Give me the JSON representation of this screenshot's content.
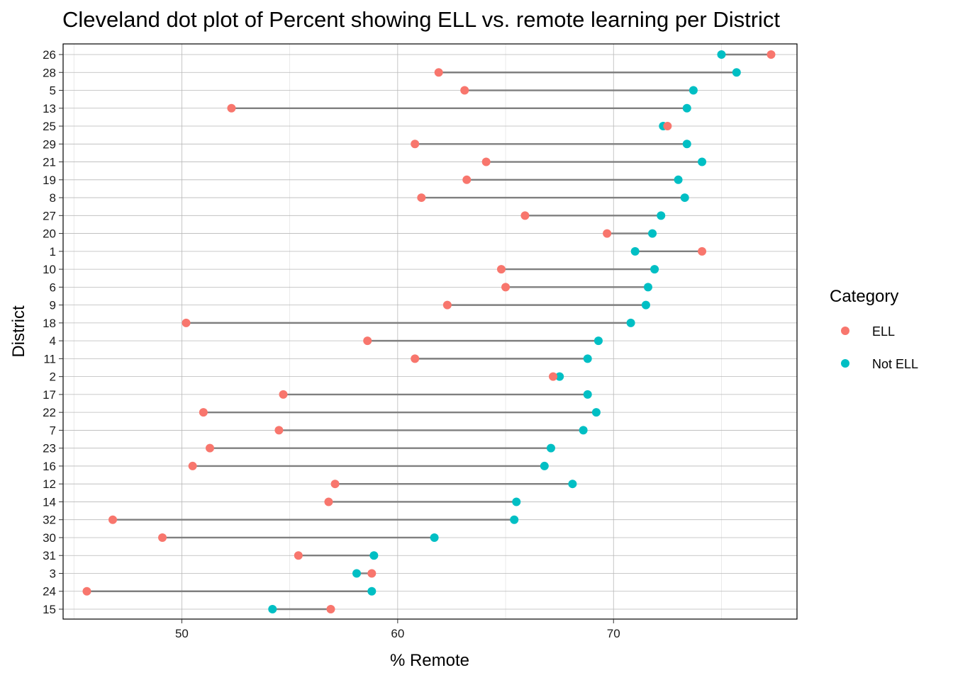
{
  "chart_data": {
    "type": "scatter",
    "title": "Cleveland dot plot of Percent showing ELL vs. remote learning per District",
    "xlabel": "% Remote",
    "ylabel": "District",
    "xlim": [
      44.5,
      78.5
    ],
    "x_ticks": [
      50,
      60,
      70
    ],
    "grid": true,
    "legend": {
      "title": "Category",
      "placement": "right",
      "entries": [
        "ELL",
        "Not ELL"
      ]
    },
    "categories": [
      "26",
      "28",
      "5",
      "13",
      "25",
      "29",
      "21",
      "19",
      "8",
      "27",
      "20",
      "1",
      "10",
      "6",
      "9",
      "18",
      "4",
      "11",
      "2",
      "17",
      "22",
      "7",
      "23",
      "16",
      "12",
      "14",
      "32",
      "30",
      "31",
      "3",
      "24",
      "15"
    ],
    "series": [
      {
        "name": "ELL",
        "color": "#F8766D",
        "values": [
          77.3,
          61.9,
          63.1,
          52.3,
          72.5,
          60.8,
          64.1,
          63.2,
          61.1,
          65.9,
          69.7,
          74.1,
          64.8,
          65.0,
          62.3,
          50.2,
          58.6,
          60.8,
          67.2,
          54.7,
          51.0,
          54.5,
          51.3,
          50.5,
          57.1,
          56.8,
          46.8,
          49.1,
          55.4,
          58.8,
          45.6,
          56.9
        ]
      },
      {
        "name": "Not ELL",
        "color": "#00BFC4",
        "values": [
          75.0,
          75.7,
          73.7,
          73.4,
          72.3,
          73.4,
          74.1,
          73.0,
          73.3,
          72.2,
          71.8,
          71.0,
          71.9,
          71.6,
          71.5,
          70.8,
          69.3,
          68.8,
          67.5,
          68.8,
          69.2,
          68.6,
          67.1,
          66.8,
          68.1,
          65.5,
          65.4,
          61.7,
          58.9,
          58.1,
          58.8,
          54.2
        ]
      }
    ]
  }
}
